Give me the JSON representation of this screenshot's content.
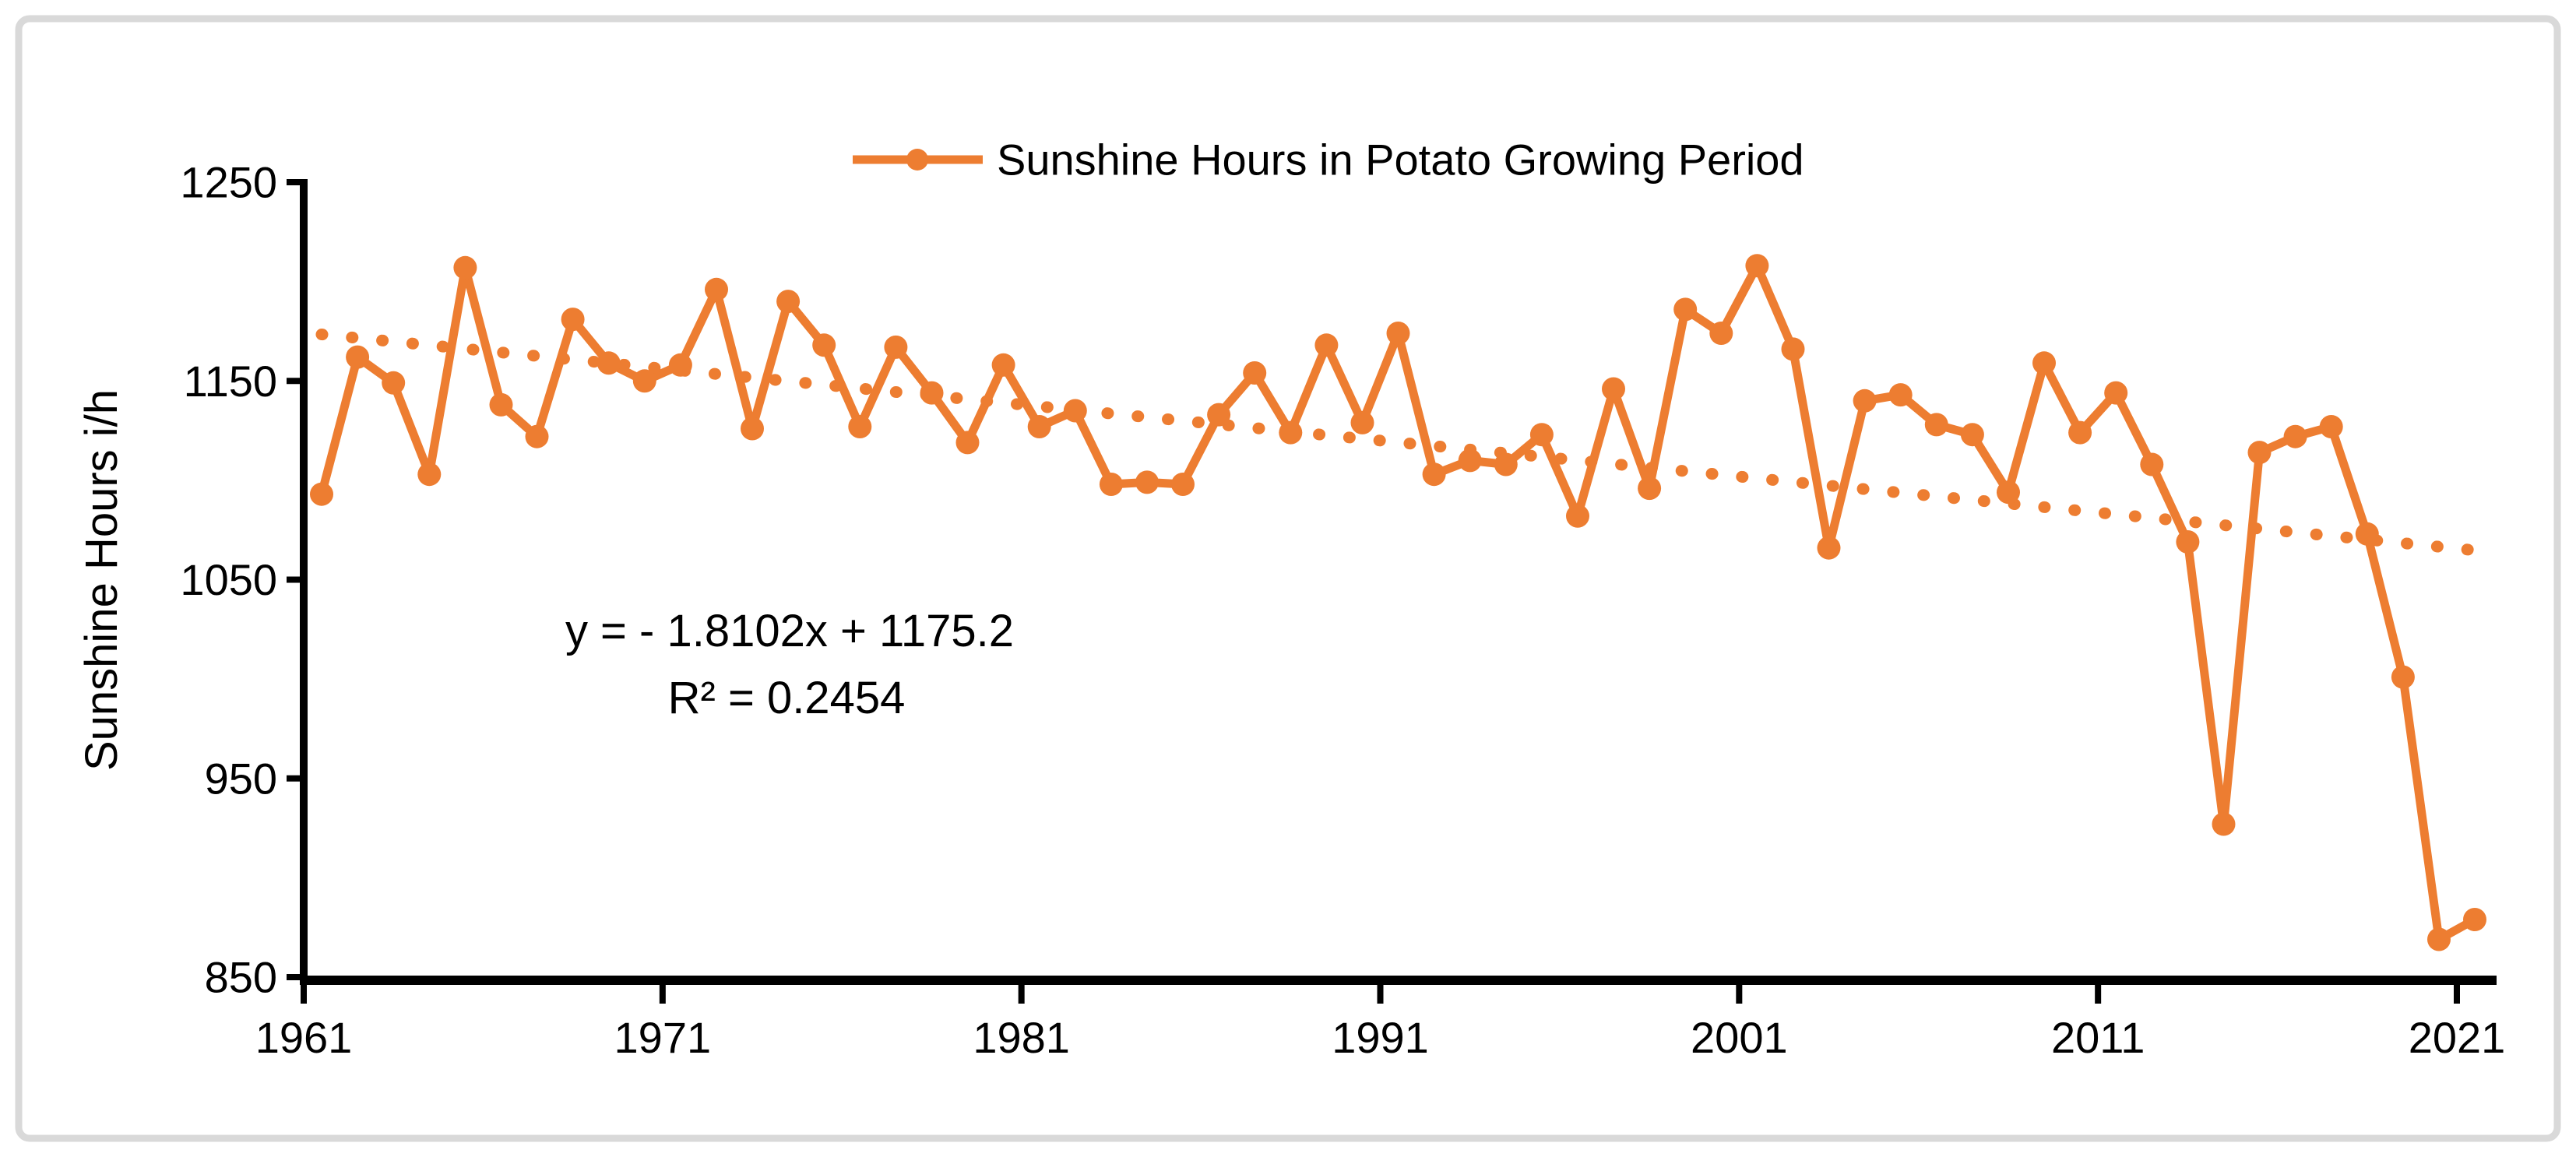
{
  "legend": {
    "label": "Sunshine Hours in Potato Growing Period"
  },
  "equation": {
    "line1": "y =  - 1.8102x + 1175.2",
    "line2": "R² = 0.2454"
  },
  "y_axis": {
    "title": "Sunshine Hours i/h",
    "ticks": [
      1250,
      1150,
      1050,
      950,
      850
    ]
  },
  "x_axis": {
    "ticks": [
      1961,
      1971,
      1981,
      1991,
      2001,
      2011,
      2021
    ]
  },
  "colors": {
    "series": "#ED7D31",
    "trendline": "#ED7D31",
    "axis": "#000000",
    "text": "#000000",
    "frame": "#D9D9D9",
    "background": "#FFFFFF"
  },
  "chart_data": {
    "type": "line",
    "title": "",
    "legend_position": "top",
    "grid": false,
    "xlabel": "",
    "ylabel": "Sunshine Hours i/h",
    "ylim": [
      850,
      1250
    ],
    "xlim": [
      1961,
      2021
    ],
    "yticks": [
      850,
      950,
      1050,
      1150,
      1250
    ],
    "xticks": [
      1961,
      1971,
      1981,
      1991,
      2001,
      2011,
      2021
    ],
    "series": [
      {
        "name": "Sunshine Hours in Potato Growing Period",
        "color": "#ED7D31",
        "marker": "circle",
        "years": [
          1961,
          1962,
          1963,
          1964,
          1965,
          1966,
          1967,
          1968,
          1969,
          1970,
          1971,
          1972,
          1973,
          1974,
          1975,
          1976,
          1977,
          1978,
          1979,
          1980,
          1981,
          1982,
          1983,
          1984,
          1985,
          1986,
          1987,
          1988,
          1989,
          1990,
          1991,
          1992,
          1993,
          1994,
          1995,
          1996,
          1997,
          1998,
          1999,
          2000,
          2001,
          2002,
          2003,
          2004,
          2005,
          2006,
          2007,
          2008,
          2009,
          2010,
          2011,
          2012,
          2013,
          2014,
          2015,
          2016,
          2017,
          2018,
          2019,
          2020,
          2021
        ],
        "values": [
          1093,
          1162,
          1149,
          1103,
          1207,
          1138,
          1122,
          1181,
          1159,
          1150,
          1158,
          1196,
          1126,
          1190,
          1168,
          1127,
          1167,
          1144,
          1119,
          1158,
          1127,
          1135,
          1098,
          1099,
          1098,
          1133,
          1154,
          1124,
          1168,
          1129,
          1174,
          1103,
          1110,
          1108,
          1123,
          1082,
          1146,
          1096,
          1186,
          1174,
          1208,
          1166,
          1066,
          1140,
          1143,
          1128,
          1123,
          1094,
          1159,
          1124,
          1144,
          1108,
          1069,
          927,
          1114,
          1122,
          1127,
          1073,
          1001,
          869,
          879
        ]
      }
    ],
    "trendline": {
      "type": "linear",
      "style": "dotted",
      "color": "#ED7D31",
      "slope": -1.8102,
      "intercept": 1175.2,
      "x_index_range": [
        1,
        61
      ],
      "equation_text": "y =  - 1.8102x + 1175.2",
      "r_squared": 0.2454,
      "r2_text": "R² = 0.2454"
    }
  }
}
